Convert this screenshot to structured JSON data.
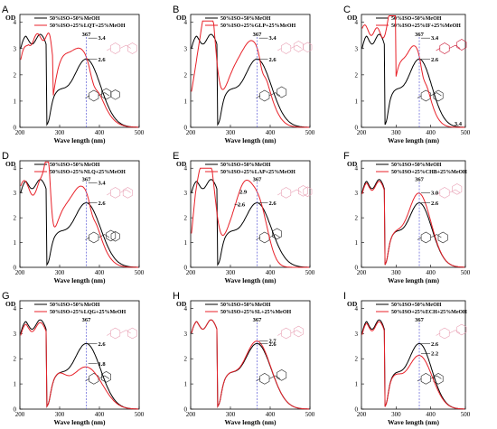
{
  "chart_data": [
    {
      "id": "A",
      "type": "line",
      "letter": "A",
      "xlabel": "Wave length (nm)",
      "ylabel": "OD",
      "xlim": [
        200,
        500
      ],
      "ylim": [
        0,
        4.3
      ],
      "xticks": [
        "200",
        "300",
        "400",
        "500"
      ],
      "yticks": [
        "0",
        "1",
        "2",
        "3",
        "4"
      ],
      "peak_label": "367",
      "ref_value": "2.6",
      "mix_value": "3.4",
      "ref_peak": 2.6,
      "mix_peak": 3.4,
      "series": [
        {
          "name": "50%ISO+50%MeOH",
          "color": "#000000"
        },
        {
          "name": "50%ISO+25%LQT+25%MeOH",
          "color": "#e8222a"
        }
      ],
      "mix_shape": "a",
      "mol_color": "#e8a0b4"
    },
    {
      "id": "B",
      "type": "line",
      "letter": "B",
      "xlabel": "Wave length (nm)",
      "ylabel": "OD",
      "xlim": [
        200,
        500
      ],
      "ylim": [
        0,
        4.3
      ],
      "xticks": [
        "200",
        "300",
        "400",
        "500"
      ],
      "yticks": [
        "0",
        "1",
        "2",
        "3",
        "4"
      ],
      "peak_label": "367",
      "ref_value": "2.6",
      "mix_value": "3.4",
      "ref_peak": 2.6,
      "mix_peak": 3.4,
      "series": [
        {
          "name": "50%ISO+50%MeOH",
          "color": "#000000"
        },
        {
          "name": "50%ISO+25%GLP+25%MeOH",
          "color": "#e8222a"
        }
      ],
      "mix_shape": "b",
      "mol_color": "#e8a0b4"
    },
    {
      "id": "C",
      "type": "line",
      "letter": "C",
      "xlabel": "Wave length (nm)",
      "ylabel": "OD",
      "xlim": [
        200,
        500
      ],
      "ylim": [
        0,
        4.3
      ],
      "xticks": [
        "200",
        "300",
        "400",
        "500"
      ],
      "yticks": [
        "0",
        "1",
        "2",
        "3",
        "4"
      ],
      "peak_label": "367",
      "ref_value": "2.6",
      "mix_value": "3.4",
      "extra_value": "3.4",
      "ref_peak": 2.6,
      "mix_peak": 3.4,
      "series": [
        {
          "name": "50%ISO+50%MeOH",
          "color": "#000000"
        },
        {
          "name": "50%ISO+25%IF+25%MeOH",
          "color": "#e8222a"
        }
      ],
      "mix_shape": "c",
      "mol_color": "#c8102e"
    },
    {
      "id": "D",
      "type": "line",
      "letter": "D",
      "xlabel": "Wave length (nm)",
      "ylabel": "OD",
      "xlim": [
        200,
        500
      ],
      "ylim": [
        0,
        4.3
      ],
      "xticks": [
        "200",
        "300",
        "400",
        "500"
      ],
      "yticks": [
        "0",
        "1",
        "2",
        "3",
        "4"
      ],
      "peak_label": "367",
      "ref_value": "2.6",
      "mix_value": "3.4",
      "ref_peak": 2.6,
      "mix_peak": 3.4,
      "series": [
        {
          "name": "50%ISO+50%MeOH",
          "color": "#000000"
        },
        {
          "name": "50%ISO+25%NLQ+25%MeOH",
          "color": "#e8222a"
        }
      ],
      "mix_shape": "d",
      "mol_color": "#e8a0b4"
    },
    {
      "id": "E",
      "type": "line",
      "letter": "E",
      "xlabel": "Wave length (nm)",
      "ylabel": "OD",
      "xlim": [
        200,
        500
      ],
      "ylim": [
        0,
        4.3
      ],
      "xticks": [
        "200",
        "300",
        "400",
        "500"
      ],
      "yticks": [
        "0",
        "1",
        "2",
        "3",
        "4"
      ],
      "peak_label": "367",
      "ref_value": "2.6",
      "mix_value": "2.9",
      "mix_value2": "2.6",
      "ref_peak": 2.6,
      "mix_peak": 2.9,
      "series": [
        {
          "name": "50%ISO+50%MeOH",
          "color": "#000000"
        },
        {
          "name": "50%ISO+25%LAP+25%MeOH",
          "color": "#e8222a"
        }
      ],
      "mix_shape": "e",
      "mol_color": "#e8a0b4"
    },
    {
      "id": "F",
      "type": "line",
      "letter": "F",
      "xlabel": "Wave length (nm)",
      "ylabel": "OD",
      "xlim": [
        200,
        500
      ],
      "ylim": [
        0,
        4.3
      ],
      "xticks": [
        "200",
        "300",
        "400",
        "500"
      ],
      "yticks": [
        "0",
        "1",
        "2",
        "3",
        "4"
      ],
      "peak_label": "367",
      "ref_value": "2.6",
      "mix_value": "3.0",
      "ref_peak": 2.6,
      "mix_peak": 3.0,
      "series": [
        {
          "name": "50%ISO+50%MeOH",
          "color": "#000000"
        },
        {
          "name": "50%ISO+25%CHB+25%MeOH",
          "color": "#e8222a"
        }
      ],
      "mix_shape": "f",
      "mol_color": "#e8a0b4"
    },
    {
      "id": "G",
      "type": "line",
      "letter": "G",
      "xlabel": "Wave length (nm)",
      "ylabel": "OD",
      "xlim": [
        200,
        500
      ],
      "ylim": [
        0,
        4.3
      ],
      "xticks": [
        "200",
        "300",
        "400",
        "500"
      ],
      "yticks": [
        "0",
        "1",
        "2",
        "3",
        "4"
      ],
      "peak_label": "367",
      "ref_value": "2.6",
      "mix_value": "1.8",
      "ref_peak": 2.6,
      "mix_peak": 1.8,
      "series": [
        {
          "name": "50%ISO+50%MeOH",
          "color": "#000000"
        },
        {
          "name": "50%ISO+25%LQG+25%MeOH",
          "color": "#e8222a"
        }
      ],
      "mix_shape": "g",
      "mol_color": "#e8a0b4"
    },
    {
      "id": "H",
      "type": "line",
      "letter": "H",
      "xlabel": "Wave length (nm)",
      "ylabel": "OD",
      "xlim": [
        200,
        500
      ],
      "ylim": [
        0,
        4.3
      ],
      "xticks": [
        "200",
        "300",
        "400",
        "500"
      ],
      "yticks": [
        "0",
        "1",
        "2",
        "3",
        "4"
      ],
      "peak_label": "367",
      "ref_value": "2.6",
      "mix_value": "2.7",
      "ref_peak": 2.6,
      "mix_peak": 2.7,
      "series": [
        {
          "name": "50%ISO+50%MeOH",
          "color": "#000000"
        },
        {
          "name": "50%ISO+25%SL+25%MeOH",
          "color": "#e8222a"
        }
      ],
      "mix_shape": "h",
      "mol_color": "#e8a0b4"
    },
    {
      "id": "I",
      "type": "line",
      "letter": "I",
      "xlabel": "Wave length (nm)",
      "ylabel": "OD",
      "xlim": [
        200,
        500
      ],
      "ylim": [
        0,
        4.3
      ],
      "xticks": [
        "200",
        "300",
        "400",
        "500"
      ],
      "yticks": [
        "0",
        "1",
        "2",
        "3",
        "4"
      ],
      "peak_label": "367",
      "ref_value": "2.6",
      "mix_value": "2.2",
      "ref_peak": 2.6,
      "mix_peak": 2.2,
      "series": [
        {
          "name": "50%ISO+50%MeOH",
          "color": "#000000"
        },
        {
          "name": "50%ISO+25%ECH+25%MeOH",
          "color": "#e8222a"
        }
      ],
      "mix_shape": "i",
      "mol_color": "#e8a0b4"
    }
  ]
}
